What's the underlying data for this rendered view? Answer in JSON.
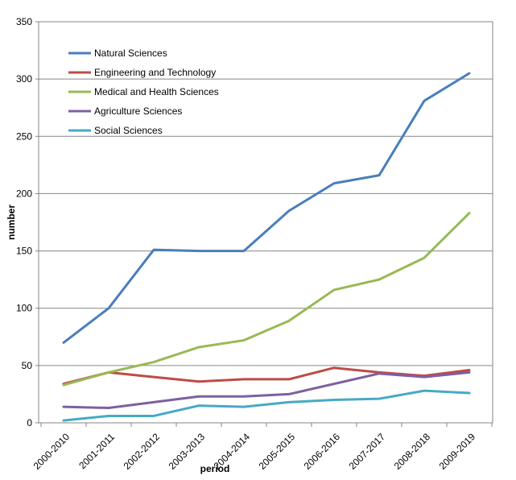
{
  "chart_data": {
    "type": "line",
    "title": "",
    "xlabel": "period",
    "ylabel": "number",
    "ylim": [
      0,
      350
    ],
    "yticks": [
      0,
      50,
      100,
      150,
      200,
      250,
      300,
      350
    ],
    "grid": "horizontal",
    "legend_position": "top-left",
    "categories": [
      "2000-2010",
      "2001-2011",
      "2002-2012",
      "2003-2013",
      "2004-2014",
      "2005-2015",
      "2006-2016",
      "2007-2017",
      "2008-2018",
      "2009-2019"
    ],
    "series": [
      {
        "name": "Natural Sciences",
        "color": "#4a7ebb",
        "values": [
          70,
          100,
          151,
          150,
          150,
          185,
          209,
          216,
          281,
          305
        ]
      },
      {
        "name": "Engineering and Technology",
        "color": "#be4b48",
        "values": [
          34,
          44,
          40,
          36,
          38,
          38,
          48,
          44,
          41,
          46
        ]
      },
      {
        "name": "Medical and Health Sciences",
        "color": "#98b954",
        "values": [
          33,
          44,
          53,
          66,
          72,
          89,
          116,
          125,
          144,
          183
        ]
      },
      {
        "name": "Agriculture Sciences",
        "color": "#7d60a0",
        "values": [
          14,
          13,
          18,
          23,
          23,
          25,
          34,
          43,
          40,
          44
        ]
      },
      {
        "name": "Social Sciences",
        "color": "#46aac5",
        "values": [
          2,
          6,
          6,
          15,
          14,
          18,
          20,
          21,
          28,
          26
        ]
      }
    ]
  }
}
